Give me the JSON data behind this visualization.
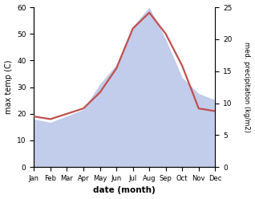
{
  "months": [
    "Jan",
    "Feb",
    "Mar",
    "Apr",
    "May",
    "Jun",
    "Jul",
    "Aug",
    "Sep",
    "Oct",
    "Nov",
    "Dec"
  ],
  "x": [
    0,
    1,
    2,
    3,
    4,
    5,
    6,
    7,
    8,
    9,
    10,
    11
  ],
  "temp": [
    19,
    18,
    20,
    22,
    28,
    37,
    52,
    58,
    50,
    38,
    22,
    21
  ],
  "precip": [
    7.5,
    7.0,
    8.0,
    9.0,
    13.0,
    16.0,
    22.0,
    25.0,
    20.0,
    14.0,
    11.5,
    10.5
  ],
  "temp_color": "#c0504d",
  "precip_fill_color": "#b8c4e8",
  "left_ylabel": "max temp (C)",
  "right_ylabel": "med. precipitation (kg/m2)",
  "xlabel": "date (month)",
  "left_ylim": [
    0,
    60
  ],
  "right_ylim": [
    0,
    25
  ],
  "left_yticks": [
    0,
    10,
    20,
    30,
    40,
    50,
    60
  ],
  "right_yticks": [
    0,
    5,
    10,
    15,
    20,
    25
  ],
  "temp_linewidth": 1.6,
  "background_color": "#ffffff"
}
